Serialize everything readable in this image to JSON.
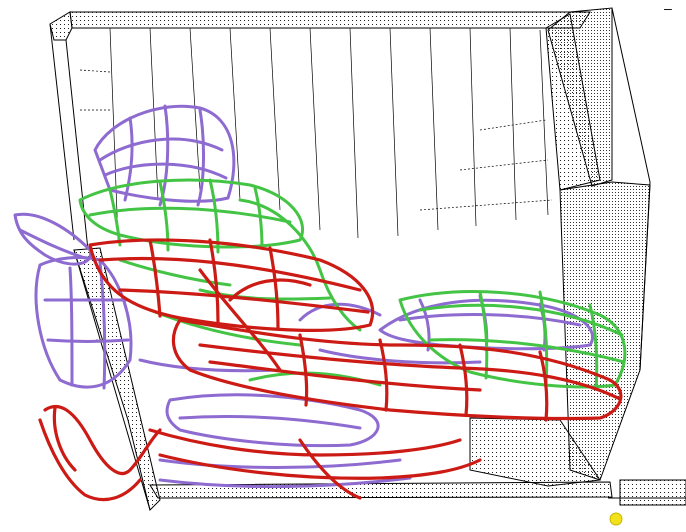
{
  "viewport": {
    "background": "#ffffff",
    "corner_mark": "–"
  },
  "scene": {
    "room_wireframe": {
      "color": "#000000"
    },
    "wireframes": [
      {
        "name": "purple",
        "color": "#8e6bd0"
      },
      {
        "name": "green",
        "color": "#44c444"
      },
      {
        "name": "red",
        "color": "#cc1a14"
      }
    ],
    "marker": {
      "color": "#f2e21a",
      "icon": "sphere-marker"
    }
  }
}
